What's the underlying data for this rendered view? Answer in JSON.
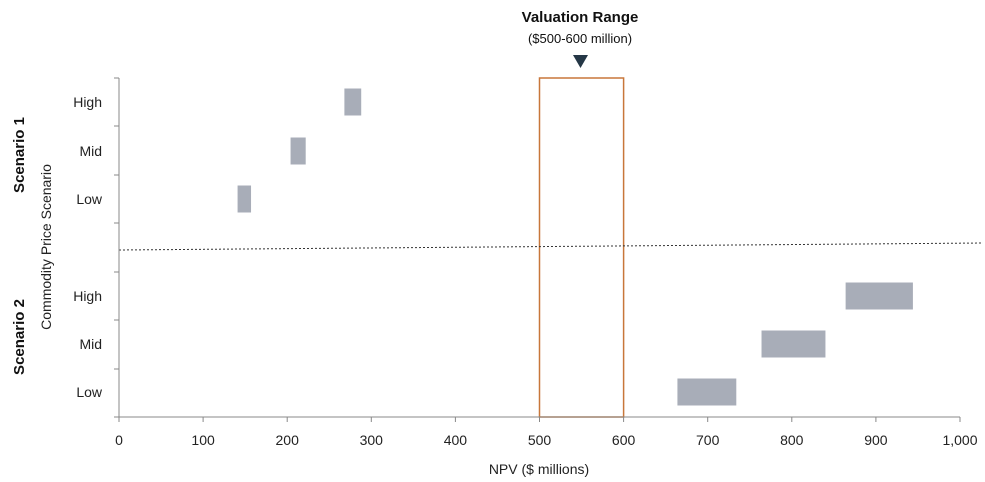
{
  "chart_data": {
    "type": "bar",
    "orientation": "horizontal-range",
    "xlabel": "NPV ($ millions)",
    "ylabel": "Commodity Price Scenario",
    "xlim": [
      0,
      1000
    ],
    "x_ticks": [
      "0",
      "100",
      "200",
      "300",
      "400",
      "500",
      "600",
      "700",
      "800",
      "900",
      "1,000"
    ],
    "grid": false,
    "groups": [
      {
        "name": "Scenario 1",
        "categories": [
          "High",
          "Mid",
          "Low"
        ],
        "ranges": [
          [
            268,
            288
          ],
          [
            204,
            222
          ],
          [
            141,
            157
          ]
        ]
      },
      {
        "name": "Scenario 2",
        "categories": [
          "High",
          "Mid",
          "Low"
        ],
        "ranges": [
          [
            864,
            944
          ],
          [
            764,
            840
          ],
          [
            664,
            734
          ]
        ]
      }
    ],
    "valuation_range": {
      "title": "Valuation Range",
      "subtitle": "($500-600 million)",
      "range": [
        500,
        600
      ]
    },
    "colors": {
      "bar": "#a8adb8",
      "valuation_box": "#c8773a",
      "marker": "#253746",
      "axis": "#888888",
      "divider": "#333333"
    }
  }
}
